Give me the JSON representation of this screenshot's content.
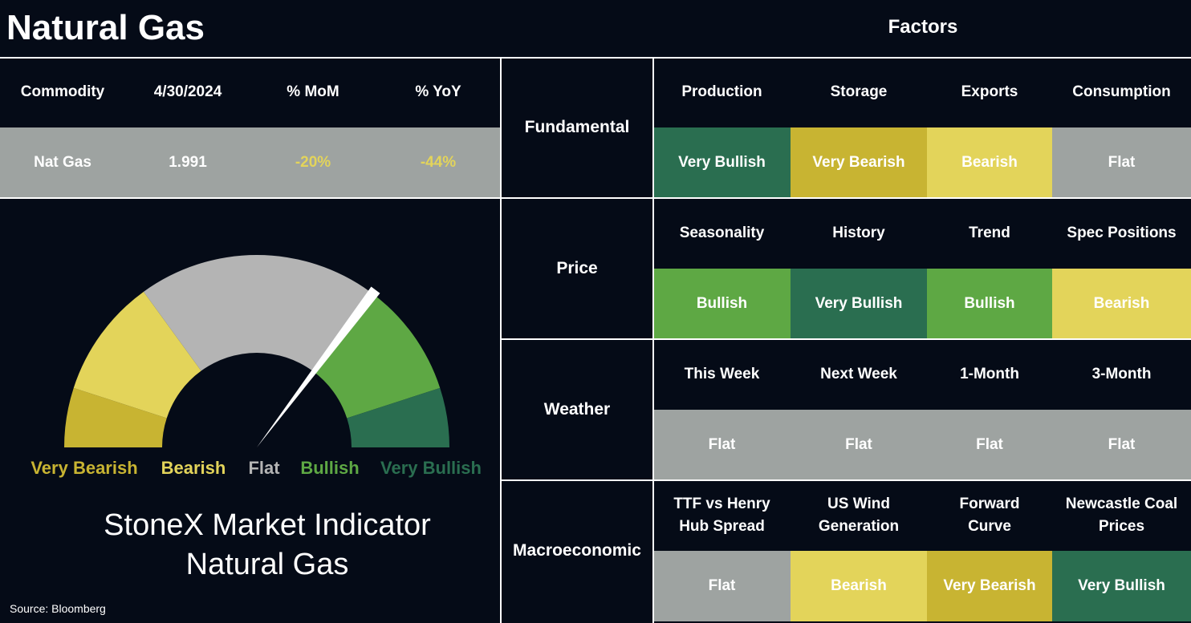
{
  "header": {
    "title": "Natural Gas",
    "factors_title": "Factors"
  },
  "commodity_table": {
    "columns": [
      "Commodity",
      "4/30/2024",
      "% MoM",
      "% YoY"
    ],
    "rows": [
      [
        "Nat Gas",
        "1.991",
        "-20%",
        "-44%"
      ]
    ]
  },
  "gauge": {
    "zones": [
      {
        "label": "Very Bearish",
        "color": "#c8b432"
      },
      {
        "label": "Bearish",
        "color": "#e3d45a"
      },
      {
        "label": "Flat",
        "color": "#b4b4b4"
      },
      {
        "label": "Bullish",
        "color": "#5ea844"
      },
      {
        "label": "Very Bullish",
        "color": "#2a6e50"
      }
    ],
    "title_lines": [
      "StoneX Market Indicator",
      "Natural Gas"
    ]
  },
  "factors": [
    {
      "category": "Fundamental",
      "items": [
        {
          "name": "Production",
          "signal": "Very Bullish",
          "color": "#2a6e50"
        },
        {
          "name": "Storage",
          "signal": "Very Bearish",
          "color": "#c8b432"
        },
        {
          "name": "Exports",
          "signal": "Bearish",
          "color": "#e3d45a"
        },
        {
          "name": "Consumption",
          "signal": "Flat",
          "color": "#9ea3a1"
        }
      ]
    },
    {
      "category": "Price",
      "items": [
        {
          "name": "Seasonality",
          "signal": "Bullish",
          "color": "#5ea844"
        },
        {
          "name": "History",
          "signal": "Very Bullish",
          "color": "#2a6e50"
        },
        {
          "name": "Trend",
          "signal": "Bullish",
          "color": "#5ea844"
        },
        {
          "name": "Spec Positions",
          "signal": "Bearish",
          "color": "#e3d45a"
        }
      ]
    },
    {
      "category": "Weather",
      "items": [
        {
          "name": "This Week",
          "signal": "Flat",
          "color": "#9ea3a1"
        },
        {
          "name": "Next Week",
          "signal": "Flat",
          "color": "#9ea3a1"
        },
        {
          "name": "1-Month",
          "signal": "Flat",
          "color": "#9ea3a1"
        },
        {
          "name": "3-Month",
          "signal": "Flat",
          "color": "#9ea3a1"
        }
      ]
    },
    {
      "category": "Macroeconomic",
      "items": [
        {
          "name": "TTF vs Henry\nHub Spread",
          "signal": "Flat",
          "color": "#9ea3a1"
        },
        {
          "name": "US Wind\nGeneration",
          "signal": "Bearish",
          "color": "#e3d45a"
        },
        {
          "name": "Forward\nCurve",
          "signal": "Very Bearish",
          "color": "#c8b432"
        },
        {
          "name": "Newcastle Coal\nPrices",
          "signal": "Very Bullish",
          "color": "#2a6e50"
        }
      ]
    }
  ],
  "source": "Source: Bloomberg"
}
